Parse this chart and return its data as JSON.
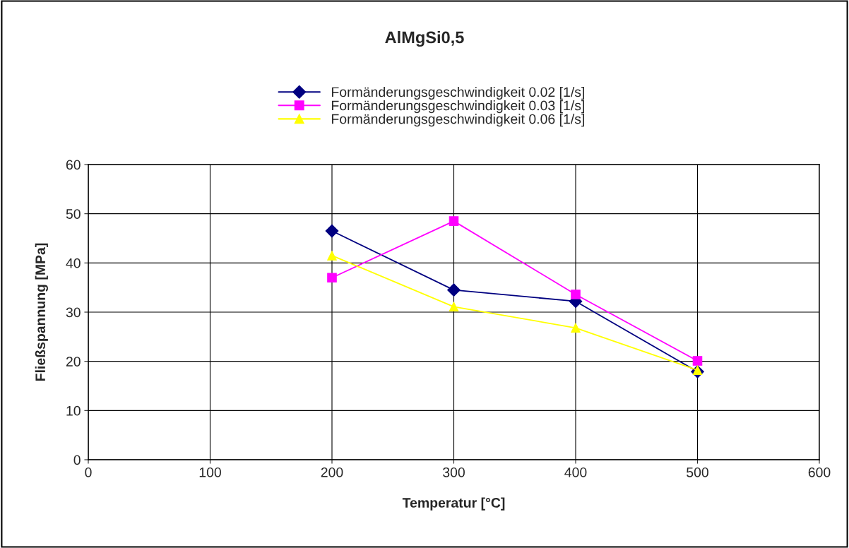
{
  "chart_data": {
    "type": "line",
    "title": "AlMgSi0,5",
    "xlabel": "Temperatur [°C]",
    "ylabel": "Fließspannung [MPa]",
    "x": [
      200,
      300,
      400,
      500
    ],
    "series": [
      {
        "name": "Formänderungsgeschwindigkeit 0.02 [1/s]",
        "color": "#000080",
        "marker": "diamond",
        "values": [
          46.5,
          34.5,
          32.2,
          17.9
        ]
      },
      {
        "name": "Formänderungsgeschwindigkeit 0.03 [1/s]",
        "color": "#ff00ff",
        "marker": "square",
        "values": [
          37.0,
          48.5,
          33.6,
          20.1
        ]
      },
      {
        "name": "Formänderungsgeschwindigkeit 0.06 [1/s]",
        "color": "#ffff00",
        "marker": "triangle",
        "values": [
          41.5,
          31.1,
          26.8,
          18.2
        ]
      }
    ],
    "xlim": [
      0,
      600
    ],
    "xticks": [
      0,
      100,
      200,
      300,
      400,
      500,
      600
    ],
    "ylim": [
      0,
      60
    ],
    "yticks": [
      0,
      10,
      20,
      30,
      40,
      50,
      60
    ],
    "grid": true,
    "legend": "top",
    "line_style": "solid"
  }
}
